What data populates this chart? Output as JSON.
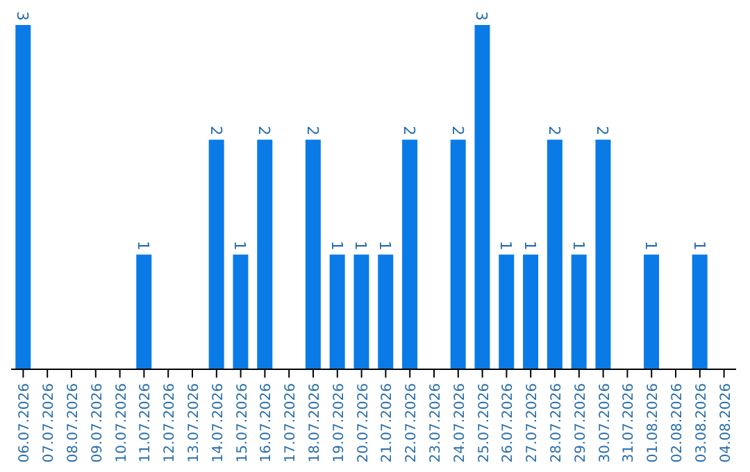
{
  "chart_data": {
    "type": "bar",
    "categories": [
      "06.07.2026",
      "07.07.2026",
      "08.07.2026",
      "09.07.2026",
      "10.07.2026",
      "11.07.2026",
      "12.07.2026",
      "13.07.2026",
      "14.07.2026",
      "15.07.2026",
      "16.07.2026",
      "17.07.2026",
      "18.07.2026",
      "19.07.2026",
      "20.07.2026",
      "21.07.2026",
      "22.07.2026",
      "23.07.2026",
      "24.07.2026",
      "25.07.2026",
      "26.07.2026",
      "27.07.2026",
      "28.07.2026",
      "29.07.2026",
      "30.07.2026",
      "31.07.2026",
      "01.08.2026",
      "02.08.2026",
      "03.08.2026",
      "04.08.2026"
    ],
    "values": [
      3,
      0,
      0,
      0,
      0,
      1,
      0,
      0,
      2,
      1,
      2,
      0,
      2,
      1,
      1,
      1,
      2,
      0,
      2,
      3,
      1,
      1,
      2,
      1,
      2,
      0,
      1,
      0,
      1,
      0
    ],
    "value_labels": [
      "3",
      null,
      null,
      null,
      null,
      "1",
      null,
      null,
      "2",
      "1",
      "2",
      null,
      "2",
      "1",
      "1",
      "1",
      "2",
      null,
      "2",
      "3",
      "1",
      "1",
      "2",
      "1",
      "2",
      null,
      "1",
      null,
      "1",
      null
    ],
    "color": "#0a7be6",
    "grid": false,
    "legend": false
  }
}
